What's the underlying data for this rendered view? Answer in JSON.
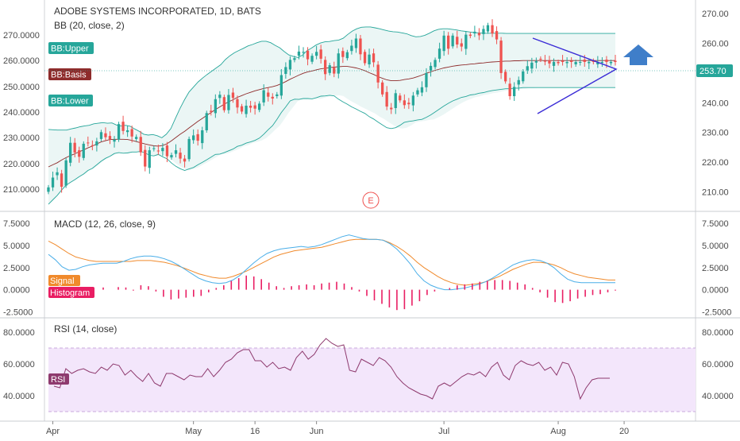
{
  "header": {
    "symbol_title": "ADOBE SYSTEMS INCORPORATED, 1D, BATS",
    "bb_title": "BB (20, close, 2)",
    "macd_title": "MACD (12, 26, close, 9)",
    "rsi_title": "RSI (14, close)"
  },
  "tags": {
    "bb_upper": "BB:Upper",
    "bb_basis": "BB:Basis",
    "bb_lower": "BB:Lower",
    "signal": "Signal",
    "histogram": "Histogram",
    "rsi": "RSI",
    "price_last": "253.70",
    "earnings": "E"
  },
  "icons": {
    "up_arrow": "up-arrow-icon"
  },
  "colors": {
    "bull": "#26a69a",
    "bear": "#ef5350",
    "bb_band": "#26a69a",
    "bb_basis": "#8e2b2b",
    "bb_fill": "#e6f4f3",
    "macd": "#4aaee8",
    "signal": "#f08a2c",
    "histogram": "#e91e63",
    "rsi": "#8e3a6e",
    "rsi_band": "#f3e6fb",
    "triangle": "#3a2bd6",
    "arrow": "#3f7ec9",
    "price_tag": "#26a69a",
    "tag_upper": "#26a69a",
    "tag_basis": "#8e2b2b",
    "tag_lower": "#26a69a",
    "tag_signal": "#f08a2c",
    "tag_histogram": "#e91e63",
    "tag_rsi": "#8e3a6e"
  },
  "chart_data": [
    {
      "type": "candlestick",
      "title": "ADOBE SYSTEMS INCORPORATED, 1D, BATS",
      "left_ticks": [
        "270.0000",
        "260.0000",
        "250.0000",
        "240.0000",
        "230.0000",
        "220.0000",
        "210.0000"
      ],
      "right_ticks": [
        "270.00",
        "260.00",
        "250.00",
        "240.00",
        "230.00",
        "220.00",
        "210.00"
      ],
      "right_ylim": [
        204.5,
        273.5
      ],
      "x_ticks": [
        "Apr",
        "May",
        "16",
        "Jun",
        "Jul",
        "Aug",
        "20"
      ],
      "x_tick_index": [
        1,
        33,
        47,
        61,
        90,
        116,
        131
      ],
      "n_bars": 130,
      "close": [
        211.5,
        214.8,
        216.6,
        211.7,
        220.6,
        226.5,
        223.2,
        221.8,
        226.2,
        226.5,
        225.6,
        227.0,
        230.1,
        228.4,
        227.7,
        227.6,
        232.8,
        230.5,
        230.7,
        228.6,
        228.5,
        223.3,
        218.5,
        224.0,
        224.7,
        223.7,
        224.8,
        222.0,
        222.4,
        224.0,
        221.2,
        220.2,
        227.8,
        229.0,
        227.2,
        230.7,
        236.5,
        236.9,
        241.2,
        242.7,
        237.5,
        242.6,
        241.6,
        238.4,
        237.0,
        239.0,
        238.3,
        238.0,
        239.7,
        244.2,
        242.0,
        241.4,
        242.8,
        249.3,
        252.0,
        254.4,
        255.0,
        257.2,
        257.1,
        254.6,
        255.8,
        257.1,
        254.8,
        249.6,
        252.6,
        249.8,
        256.6,
        255.4,
        257.0,
        259.2,
        261.6,
        256.3,
        253.3,
        256.2,
        253.6,
        246.8,
        242.8,
        238.7,
        237.8,
        243.2,
        240.8,
        239.2,
        239.5,
        242.4,
        244.2,
        245.2,
        250.0,
        252.4,
        254.4,
        258.2,
        262.6,
        258.2,
        262.6,
        259.6,
        258.9,
        262.9,
        262.5,
        263.9,
        262.7,
        264.8,
        266.1,
        263.3,
        261.3,
        250.0,
        247.2,
        242.2,
        245.3,
        247.6,
        250.5,
        252.3,
        253.5,
        254.0,
        254.5,
        253.8,
        253.2,
        253.7,
        253.3,
        253.7,
        253.7,
        253.7,
        253.7,
        253.7,
        253.7,
        253.7,
        253.7,
        253.7,
        253.7,
        253.7,
        253.7,
        253.7
      ],
      "bb_upper": [
        231.0,
        230.9,
        230.8,
        230.8,
        230.8,
        231.2,
        231.5,
        231.9,
        232.2,
        232.4,
        232.9,
        233.1,
        233.3,
        233.1,
        233.2,
        232.5,
        232.2,
        232.4,
        232.1,
        231.2,
        230.4,
        229.4,
        229.1,
        229.3,
        228.9,
        228.2,
        229.4,
        231.3,
        234.7,
        238.0,
        241.0,
        243.6,
        245.3,
        247.0,
        248.3,
        249.5,
        250.6,
        251.7,
        252.8,
        254.5,
        255.8,
        256.8,
        257.6,
        258.3,
        259.1,
        259.6,
        260.2,
        260.7,
        260.7,
        260.2,
        259.3,
        258.5,
        257.2,
        256.1,
        255.6,
        255.2,
        256.0,
        257.5,
        258.4,
        259.4,
        260.1,
        260.5,
        260.6,
        260.9,
        261.1,
        261.7,
        263.0,
        264.1,
        264.9,
        265.4,
        265.5,
        265.5,
        265.2,
        264.9,
        264.5,
        264.1,
        263.9,
        263.8,
        263.5,
        263.2,
        262.6,
        262.2,
        262.3,
        262.7,
        263.4,
        264.2,
        264.7,
        264.9,
        264.9,
        264.7,
        264.5,
        264.2,
        264.0,
        263.8,
        263.6,
        263.5,
        263.4,
        263.4,
        263.4,
        263.4,
        263.4,
        263.3,
        263.3,
        263.3,
        263.3,
        263.3,
        263.3,
        263.3,
        263.3,
        263.3,
        263.3,
        263.3,
        263.3,
        263.3,
        263.3,
        263.3,
        263.3,
        263.3,
        263.3,
        263.3,
        263.3,
        263.3,
        263.3,
        263.3,
        263.3,
        263.3
      ],
      "bb_basis": [
        218.4,
        219.1,
        219.8,
        220.7,
        221.5,
        222.2,
        222.8,
        223.5,
        224.1,
        224.8,
        225.4,
        226.1,
        226.8,
        227.2,
        227.6,
        227.7,
        227.7,
        227.7,
        227.6,
        227.3,
        226.9,
        226.5,
        226.1,
        225.8,
        225.5,
        225.4,
        225.6,
        226.2,
        227.2,
        228.3,
        229.4,
        230.4,
        231.5,
        232.6,
        233.7,
        234.7,
        235.7,
        236.7,
        237.7,
        238.6,
        239.5,
        240.3,
        241.0,
        241.8,
        242.4,
        243.0,
        243.5,
        244.0,
        244.4,
        244.8,
        245.1,
        245.4,
        245.8,
        246.4,
        247.1,
        247.9,
        248.6,
        249.3,
        249.9,
        250.4,
        250.7,
        251.1,
        251.4,
        251.6,
        251.8,
        252.0,
        252.1,
        252.2,
        252.2,
        252.0,
        251.7,
        251.3,
        250.8,
        250.1,
        249.5,
        248.8,
        248.2,
        247.7,
        247.4,
        247.4,
        247.5,
        247.8,
        248.0,
        248.3,
        248.8,
        249.3,
        249.9,
        250.4,
        250.9,
        251.3,
        251.7,
        252.0,
        252.3,
        252.5,
        252.7,
        252.8,
        253.0,
        253.1,
        253.3,
        253.4,
        253.6,
        253.7,
        253.8,
        253.9,
        254.0,
        254.0,
        254.1,
        254.1,
        254.2,
        254.2,
        254.2,
        254.2,
        254.2,
        254.2,
        254.2,
        254.2,
        254.2,
        254.2,
        254.2,
        254.2,
        254.2,
        254.2,
        254.2,
        254.2,
        254.2,
        254.2,
        254.2,
        254.2,
        254.2,
        254.2
      ],
      "bb_lower": [
        205.8,
        207.3,
        208.8,
        210.6,
        212.2,
        213.2,
        214.1,
        215.1,
        216.0,
        217.2,
        217.9,
        219.1,
        220.3,
        221.3,
        222.0,
        222.9,
        223.2,
        223.0,
        223.1,
        223.4,
        223.4,
        223.6,
        223.1,
        222.3,
        222.1,
        222.6,
        221.8,
        221.1,
        219.7,
        218.6,
        217.8,
        217.2,
        217.7,
        218.2,
        219.1,
        219.9,
        220.8,
        221.7,
        222.6,
        222.7,
        223.2,
        223.8,
        224.4,
        225.3,
        225.7,
        226.4,
        226.8,
        227.3,
        228.1,
        229.4,
        230.9,
        232.3,
        234.4,
        236.7,
        238.6,
        240.6,
        241.2,
        241.1,
        241.4,
        241.4,
        241.3,
        241.7,
        242.2,
        242.3,
        242.5,
        242.3,
        241.2,
        240.3,
        239.5,
        238.6,
        237.9,
        237.1,
        236.4,
        235.3,
        234.5,
        233.5,
        232.5,
        231.6,
        231.3,
        231.6,
        232.4,
        233.4,
        233.7,
        233.9,
        234.2,
        234.4,
        235.1,
        235.9,
        236.9,
        237.9,
        238.9,
        239.8,
        240.6,
        241.2,
        241.8,
        242.1,
        242.6,
        242.8,
        243.2,
        243.4,
        243.8,
        244.1,
        244.3,
        244.5,
        244.7,
        244.7,
        244.9,
        244.9,
        245.1,
        245.1,
        245.1,
        245.1,
        245.1,
        245.1,
        245.1,
        245.1,
        245.1,
        245.1,
        245.1,
        245.1,
        245.1,
        245.1,
        245.1,
        245.1,
        245.1,
        245.1,
        245.1,
        245.1,
        245.1,
        245.1
      ],
      "price_last": 253.7,
      "annotations": [
        "symmetric triangle",
        "up arrow"
      ]
    },
    {
      "type": "line",
      "title": "MACD (12, 26, close, 9)",
      "ticks": [
        "7.5000",
        "5.0000",
        "2.5000",
        "0.0000",
        "-2.5000"
      ],
      "right_ticks": [
        "7.5000",
        "5.0000",
        "2.5000",
        "0.0000",
        "-2.5000"
      ],
      "ylim": [
        -3.0,
        8.5
      ],
      "series": [
        {
          "name": "MACD",
          "values": [
            4.0,
            3.4,
            2.6,
            2.2,
            2.3,
            2.6,
            2.8,
            2.9,
            3.0,
            3.0,
            3.0,
            3.2,
            3.5,
            3.7,
            3.8,
            3.8,
            3.7,
            3.5,
            3.2,
            2.8,
            2.3,
            1.8,
            1.3,
            1.0,
            0.8,
            0.7,
            0.8,
            1.1,
            1.6,
            2.3,
            3.0,
            3.6,
            4.1,
            4.4,
            4.6,
            4.7,
            4.8,
            4.9,
            4.8,
            4.9,
            5.1,
            5.4,
            5.7,
            6.0,
            6.2,
            6.0,
            5.8,
            5.7,
            5.7,
            5.6,
            5.2,
            4.6,
            3.8,
            2.9,
            1.8,
            1.0,
            0.5,
            0.2,
            0.0,
            0.0,
            0.1,
            0.2,
            0.4,
            0.6,
            0.9,
            1.3,
            1.8,
            2.3,
            2.8,
            3.1,
            3.3,
            3.4,
            3.3,
            3.0,
            2.5,
            1.8,
            1.2,
            0.9,
            0.8,
            0.8,
            0.8,
            0.8,
            0.8,
            0.8
          ]
        },
        {
          "name": "Signal",
          "values": [
            5.5,
            5.1,
            4.6,
            4.1,
            3.7,
            3.5,
            3.3,
            3.2,
            3.2,
            3.2,
            3.2,
            3.2,
            3.2,
            3.3,
            3.3,
            3.3,
            3.2,
            3.1,
            2.9,
            2.7,
            2.4,
            2.1,
            1.8,
            1.6,
            1.4,
            1.3,
            1.3,
            1.5,
            1.8,
            2.1,
            2.5,
            2.9,
            3.3,
            3.7,
            4.0,
            4.2,
            4.4,
            4.5,
            4.6,
            4.7,
            4.8,
            5.0,
            5.2,
            5.4,
            5.6,
            5.7,
            5.7,
            5.7,
            5.7,
            5.6,
            5.3,
            4.9,
            4.4,
            3.8,
            3.1,
            2.5,
            2.0,
            1.5,
            1.1,
            0.8,
            0.6,
            0.5,
            0.6,
            0.7,
            0.9,
            1.2,
            1.5,
            1.9,
            2.3,
            2.6,
            2.9,
            3.1,
            3.1,
            3.0,
            2.8,
            2.5,
            2.1,
            1.8,
            1.6,
            1.4,
            1.3,
            1.2,
            1.1,
            1.1
          ]
        }
      ],
      "histogram": [
        0.25,
        0.0,
        0.3,
        0.25,
        -0.1,
        0.5,
        0.4,
        -0.2,
        -0.8,
        -1.1,
        -1.0,
        -0.9,
        -0.8,
        -0.7,
        -0.3,
        0.2,
        0.5,
        1.0,
        1.3,
        1.6,
        1.5,
        1.2,
        0.8,
        0.4,
        0.2,
        0.4,
        0.5,
        0.6,
        0.5,
        0.7,
        0.8,
        0.9,
        0.7,
        0.3,
        -0.2,
        -0.7,
        -1.2,
        -1.6,
        -2.0,
        -2.3,
        -2.2,
        -1.8,
        -1.3,
        -0.6,
        -0.2,
        0.0,
        0.2,
        0.5,
        0.6,
        0.7,
        0.9,
        1.0,
        1.1,
        1.1,
        1.0,
        0.8,
        0.6,
        0.2,
        -0.3,
        -0.9,
        -1.4,
        -1.5,
        -1.3,
        -1.0,
        -0.8,
        -0.6,
        -0.5,
        -0.3,
        -0.1
      ],
      "legend": [
        "Signal",
        "Histogram"
      ]
    },
    {
      "type": "line",
      "title": "RSI (14, close)",
      "ticks": [
        "80.0000",
        "60.0000",
        "40.0000"
      ],
      "right_ticks": [
        "80.0000",
        "60.0000",
        "40.0000"
      ],
      "ylim": [
        25.0,
        87.0
      ],
      "band": [
        30,
        70
      ],
      "series": [
        {
          "name": "RSI",
          "values": [
            46,
            45,
            57,
            54,
            56,
            57,
            55,
            54,
            58,
            56,
            60,
            59,
            53,
            56,
            52,
            49,
            54,
            48,
            46,
            54,
            54,
            52,
            50,
            53,
            52,
            52,
            57,
            52,
            56,
            61,
            63,
            67,
            69,
            69,
            62,
            62,
            58,
            61,
            57,
            58,
            56,
            64,
            68,
            63,
            66,
            72,
            76,
            73,
            71,
            72,
            56,
            55,
            63,
            61,
            59,
            64,
            62,
            58,
            52,
            48,
            45,
            43,
            41,
            40,
            38,
            46,
            48,
            46,
            49,
            52,
            54,
            53,
            55,
            52,
            58,
            61,
            53,
            50,
            59,
            62,
            60,
            59,
            61,
            56,
            58,
            53,
            61,
            60,
            52,
            38,
            45,
            50,
            51,
            51,
            51
          ]
        }
      ],
      "legend": [
        "RSI"
      ]
    }
  ]
}
